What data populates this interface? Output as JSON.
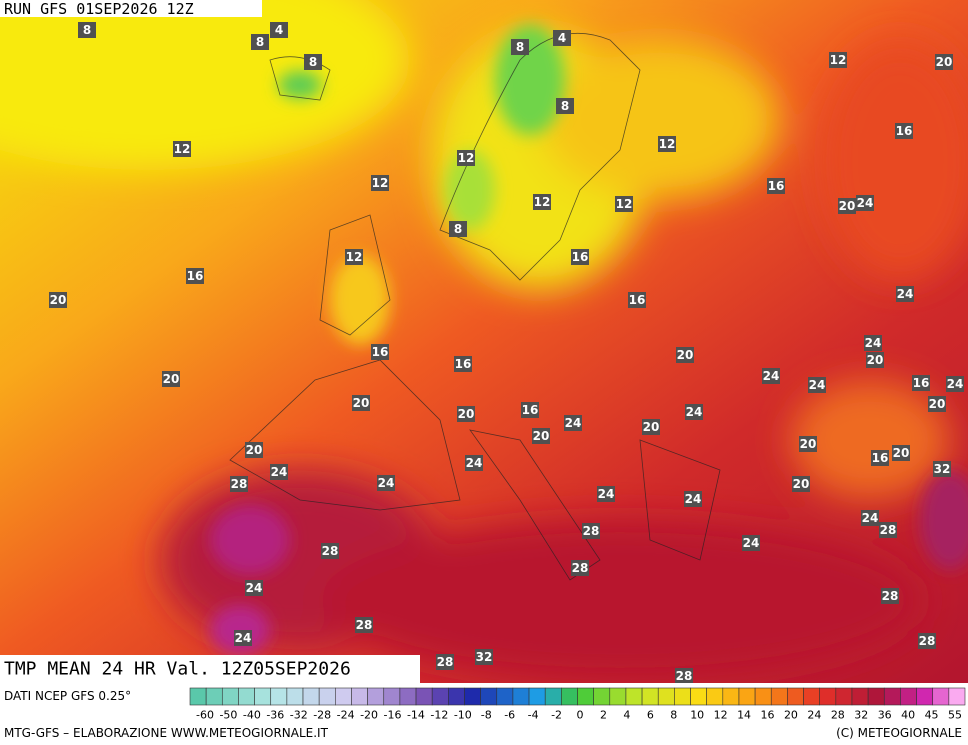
{
  "header": {
    "run": "RUN GFS 01SEP2026 12Z",
    "title": "TMP MEAN 24 HR Val. 12Z05SEP2026"
  },
  "map_labels": [
    8,
    8,
    4,
    8,
    8,
    4,
    8,
    12,
    20,
    12,
    12,
    12,
    12,
    12,
    12,
    16,
    16,
    20,
    24,
    8,
    12,
    16,
    16,
    20,
    16,
    24,
    16,
    16,
    20,
    24,
    20,
    20,
    24,
    24,
    16,
    24,
    20,
    20,
    16,
    24,
    24,
    20,
    20,
    20,
    20,
    20,
    24,
    24,
    16,
    20,
    32,
    28,
    24,
    24,
    24,
    20,
    24,
    28,
    28,
    28,
    24,
    28,
    24,
    28,
    24,
    28,
    28,
    28,
    32,
    28,
    28
  ],
  "footer": {
    "source": "DATI NCEP GFS 0.25°",
    "credit": "MTG-GFS – ELABORAZIONE WWW.METEOGIORNALE.IT",
    "copyright": "(C) METEOGIORNALE"
  },
  "colorbar": {
    "labels": [
      -60,
      -50,
      -40,
      -36,
      -32,
      -28,
      -24,
      -20,
      -16,
      -14,
      -12,
      -10,
      -8,
      -6,
      -4,
      -2,
      0,
      2,
      4,
      6,
      8,
      10,
      12,
      14,
      16,
      20,
      24,
      28,
      32,
      36,
      40,
      45,
      55
    ]
  }
}
